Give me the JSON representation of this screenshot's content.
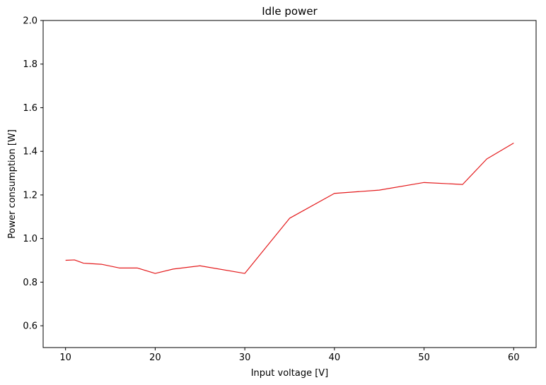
{
  "chart_data": {
    "type": "line",
    "title": "Idle power",
    "xlabel": "Input voltage [V]",
    "ylabel": "Power consumption [W]",
    "xlim": [
      7.5,
      62.5
    ],
    "ylim": [
      0.5,
      2.0
    ],
    "xticks": [
      10,
      20,
      30,
      40,
      50,
      60
    ],
    "yticks": [
      0.6,
      0.8,
      1.0,
      1.2,
      1.4,
      1.6,
      1.8,
      2.0
    ],
    "xtick_labels": [
      "10",
      "20",
      "30",
      "40",
      "50",
      "60"
    ],
    "ytick_labels": [
      "0.6",
      "0.8",
      "1.0",
      "1.2",
      "1.4",
      "1.6",
      "1.8",
      "2.0"
    ],
    "grid": false,
    "series": [
      {
        "color": "#e41a1c",
        "x": [
          10,
          11,
          12,
          14,
          16,
          18,
          20,
          22,
          25,
          30,
          35,
          40,
          45,
          50,
          54.3,
          57,
          60
        ],
        "y": [
          0.9,
          0.902,
          0.887,
          0.882,
          0.865,
          0.865,
          0.84,
          0.86,
          0.875,
          0.84,
          1.093,
          1.207,
          1.222,
          1.257,
          1.248,
          1.365,
          1.438
        ]
      }
    ]
  }
}
